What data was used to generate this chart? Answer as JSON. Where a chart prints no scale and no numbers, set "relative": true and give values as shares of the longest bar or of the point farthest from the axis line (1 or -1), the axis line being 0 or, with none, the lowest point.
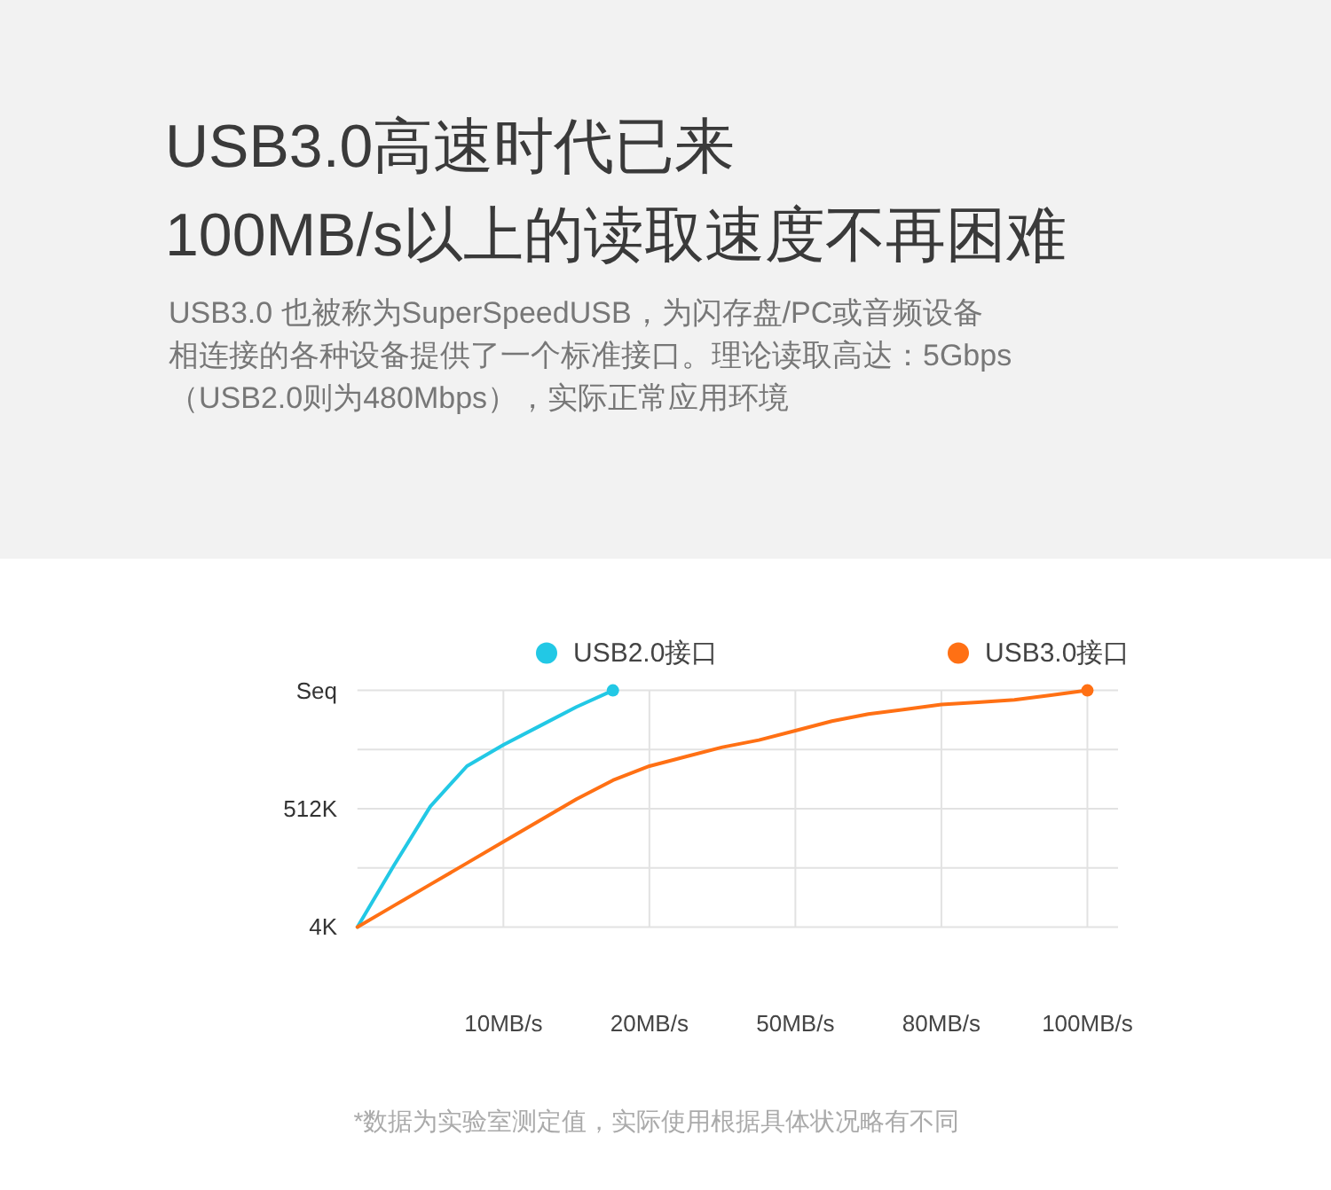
{
  "chart_data": {
    "type": "line",
    "title": "USB3.0高速时代已来",
    "subtitle": "100MB/s以上的读取速度不再困难",
    "annotations": [
      "USB3.0 也被称为SuperSpeedUSB，为闪存盘/PC或音频设备相连接的各种设备提供了一个标准接口。理论读取高达：5Gbps（USB2.0则为480Mbps），实际正常应用环境",
      "Seq",
      "4K",
      "*数据为实验室测定值，实际使用根据具体状况略有不同"
    ],
    "relative": true,
    "categories": [
      null,
      null,
      null,
      null,
      "10MB/s",
      null,
      null,
      null,
      "20MB/s",
      null,
      null,
      null,
      "50MB/s",
      null,
      null,
      null,
      "80MB/s",
      null,
      null,
      null,
      "100MB/s"
    ],
    "series": [
      {
        "name": "USB2.0接口",
        "color": "#22c8e5",
        "values": [
          0,
          0.26,
          0.51,
          0.68,
          0.77,
          0.85,
          0.93,
          1,
          null,
          null,
          null,
          null,
          null,
          null,
          null,
          null,
          null,
          null,
          null,
          null,
          null
        ]
      },
      {
        "name": "USB3.0接口",
        "color": "#ff7014",
        "values": [
          0,
          0.09,
          0.18,
          0.27,
          0.36,
          0.45,
          0.54,
          0.62,
          0.68,
          0.72,
          0.76,
          0.79,
          0.83,
          0.87,
          0.9,
          0.92,
          0.94,
          0.95,
          0.96,
          0.98,
          1
        ]
      },
      {
        "type": "scatter",
        "color": "#22c8e5",
        "values": [
          null,
          null,
          null,
          null,
          null,
          null,
          null,
          1,
          null,
          null,
          null,
          null,
          null,
          null,
          null,
          null,
          null,
          null,
          null,
          null,
          null
        ]
      },
      {
        "type": "scatter",
        "color": "#ff7014",
        "values": [
          null,
          null,
          null,
          null,
          null,
          null,
          null,
          null,
          null,
          null,
          null,
          null,
          null,
          null,
          null,
          null,
          null,
          null,
          null,
          null,
          1
        ]
      }
    ],
    "ref_lines": [
      {
        "axis": "y",
        "value": 0.25,
        "label": null,
        "color": "#e2e2e2"
      },
      {
        "axis": "y",
        "value": 0.5,
        "label": "512K",
        "color": "#e2e2e2"
      },
      {
        "axis": "y",
        "value": 0.75,
        "label": null,
        "color": "#e2e2e2"
      }
    ],
    "grid": "x",
    "legend": "top"
  }
}
